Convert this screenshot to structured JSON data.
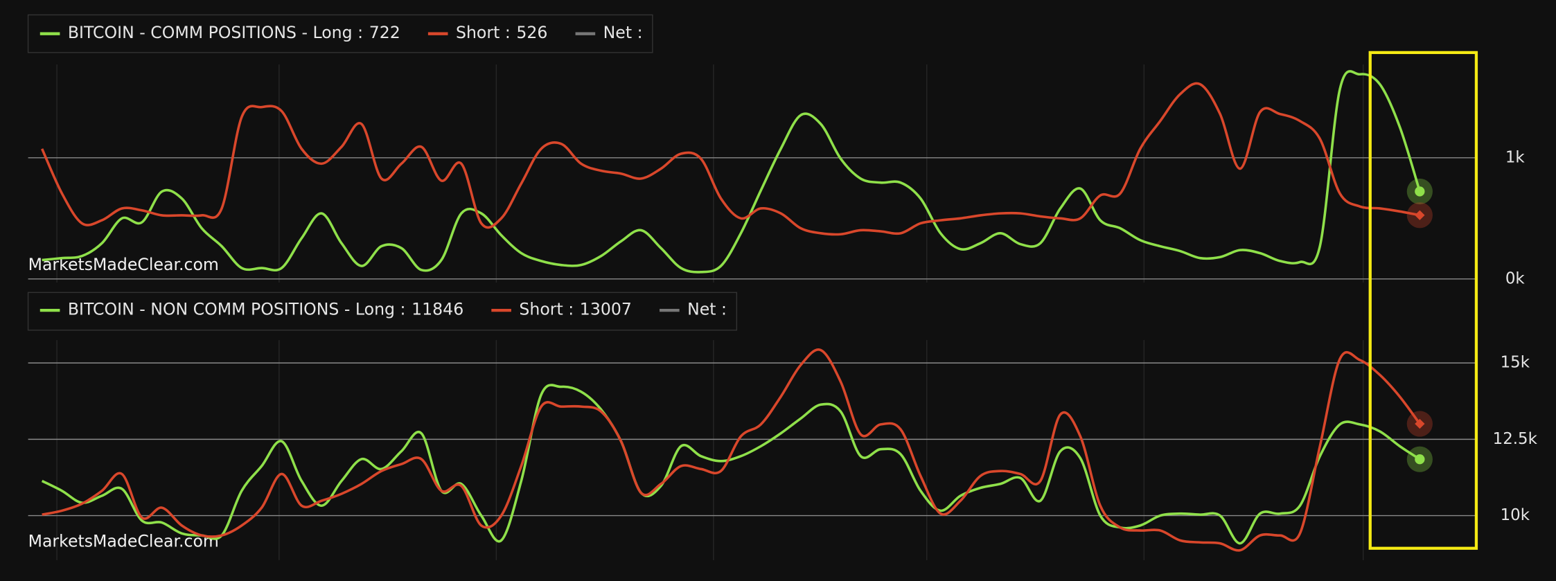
{
  "chart_data": [
    {
      "type": "line",
      "watermark": "MarketsMadeClear.com",
      "ylim": [
        -30,
        1770
      ],
      "yticks": [
        {
          "value": 0,
          "label": "0k"
        },
        {
          "value": 1000,
          "label": "1k"
        }
      ],
      "grid": true,
      "series": [
        {
          "name": "BITCOIN - COMM POSITIONS - Long :",
          "color": "#8fe04a",
          "values": [
            156,
            172,
            189,
            295,
            500,
            467,
            721,
            664,
            418,
            270,
            90,
            90,
            90,
            336,
            541,
            295,
            107,
            270,
            254,
            74,
            156,
            541,
            541,
            361,
            213,
            148,
            115,
            115,
            189,
            311,
            402,
            254,
            90,
            57,
            107,
            377,
            730,
            1074,
            1352,
            1279,
            992,
            828,
            795,
            795,
            664,
            377,
            246,
            295,
            377,
            287,
            295,
            582,
            746,
            484,
            418,
            320,
            270,
            230,
            172,
            180,
            238,
            213,
            148,
            139,
            270,
            1566,
            1689,
            1607,
            1254,
            722
          ]
        },
        {
          "name": "Short :",
          "color": "#d9472b",
          "values": [
            1074,
            705,
            459,
            484,
            582,
            566,
            525,
            525,
            525,
            582,
            1336,
            1418,
            1385,
            1074,
            951,
            1090,
            1279,
            828,
            951,
            1090,
            811,
            951,
            459,
            500,
            787,
            1074,
            1115,
            951,
            893,
            869,
            828,
            910,
            1033,
            992,
            664,
            500,
            582,
            541,
            418,
            377,
            369,
            402,
            393,
            377,
            459,
            484,
            500,
            525,
            541,
            541,
            516,
            500,
            500,
            689,
            705,
            1074,
            1303,
            1525,
            1607,
            1361,
            910,
            1377,
            1361,
            1303,
            1156,
            705,
            598,
            582,
            557,
            526
          ]
        },
        {
          "name": "Net :",
          "color": "#777777"
        }
      ]
    },
    {
      "type": "line",
      "watermark": "MarketsMadeClear.com",
      "ylim": [
        8540,
        15750
      ],
      "yticks": [
        {
          "value": 10000,
          "label": "10k"
        },
        {
          "value": 12500,
          "label": "12.5k"
        },
        {
          "value": 15000,
          "label": "15k"
        }
      ],
      "grid": true,
      "series": [
        {
          "name": "BITCOIN - NON COMM POSITIONS - Long :",
          "color": "#8fe04a",
          "values": [
            11136,
            10812,
            10422,
            10649,
            10877,
            9838,
            9773,
            9416,
            9351,
            9351,
            10812,
            11623,
            12435,
            11136,
            10325,
            11136,
            11851,
            11526,
            12110,
            12695,
            10812,
            11039,
            10000,
            9188,
            11136,
            13961,
            14221,
            14058,
            13474,
            12435,
            10747,
            10974,
            12273,
            11948,
            11786,
            11948,
            12273,
            12695,
            13182,
            13636,
            13409,
            11948,
            12175,
            12013,
            10812,
            10162,
            10649,
            10909,
            11039,
            11234,
            10487,
            12110,
            11883,
            10000,
            9610,
            9675,
            10000,
            10065,
            10032,
            10000,
            9091,
            10065,
            10065,
            10325,
            11948,
            12987,
            12987,
            12760,
            12273,
            11846
          ]
        },
        {
          "name": "Short :",
          "color": "#d9472b",
          "values": [
            10032,
            10162,
            10390,
            10812,
            11364,
            9935,
            10260,
            9675,
            9351,
            9351,
            9675,
            10260,
            11364,
            10325,
            10487,
            10714,
            11039,
            11461,
            11688,
            11851,
            10812,
            10974,
            9675,
            10000,
            11623,
            13571,
            13571,
            13571,
            13409,
            12435,
            10747,
            11039,
            11623,
            11526,
            11461,
            12597,
            12987,
            13896,
            14935,
            15422,
            14383,
            12662,
            12987,
            12825,
            11299,
            10065,
            10487,
            11299,
            11461,
            11364,
            11136,
            13312,
            12597,
            10325,
            9610,
            9513,
            9513,
            9188,
            9123,
            9091,
            8864,
            9351,
            9351,
            9416,
            12273,
            15130,
            15097,
            14610,
            13896,
            13007
          ]
        },
        {
          "name": "Net :",
          "color": "#777777"
        }
      ]
    }
  ]
}
